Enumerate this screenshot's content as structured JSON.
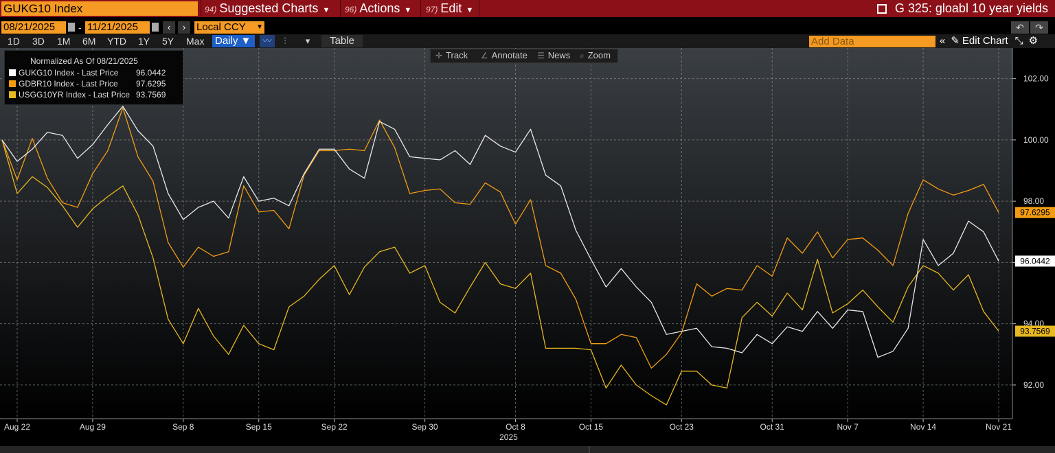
{
  "topbar": {
    "ticker": "GUKG10 Index",
    "menus": [
      {
        "num": "94)",
        "label": "Suggested Charts"
      },
      {
        "num": "96)",
        "label": "Actions"
      },
      {
        "num": "97)",
        "label": "Edit"
      }
    ],
    "title": "G 325: gloabl 10 year yields"
  },
  "controls": {
    "start_date": "08/21/2025",
    "end_date": "11/21/2025",
    "currency": "Local CCY",
    "ranges": [
      "1D",
      "3D",
      "1M",
      "6M",
      "YTD",
      "1Y",
      "5Y",
      "Max"
    ],
    "frequency": "Daily ▼",
    "table_label": "Table",
    "add_data_placeholder": "Add Data",
    "edit_chart_label": "Edit Chart"
  },
  "tools": [
    "Track",
    "Annotate",
    "News",
    "Zoom"
  ],
  "legend": {
    "title": "Normalized As Of 08/21/2025",
    "entries": [
      {
        "label": "GUKG10 Index - Last Price",
        "value": "96.0442",
        "color": "#ffffff"
      },
      {
        "label": "GDBR10 Index - Last Price",
        "value": "97.6295",
        "color": "#f39c12"
      },
      {
        "label": "USGG10YR Index - Last Price",
        "value": "93.7569",
        "color": "#e8b820"
      }
    ]
  },
  "chart_data": {
    "type": "line",
    "x": [
      "Aug 21",
      "Aug 22",
      "Aug 25",
      "Aug 26",
      "Aug 27",
      "Aug 28",
      "Aug 29",
      "Sep 1",
      "Sep 2",
      "Sep 3",
      "Sep 4",
      "Sep 5",
      "Sep 8",
      "Sep 9",
      "Sep 10",
      "Sep 11",
      "Sep 12",
      "Sep 15",
      "Sep 16",
      "Sep 17",
      "Sep 18",
      "Sep 19",
      "Sep 22",
      "Sep 23",
      "Sep 24",
      "Sep 25",
      "Sep 26",
      "Sep 29",
      "Sep 30",
      "Oct 1",
      "Oct 2",
      "Oct 3",
      "Oct 6",
      "Oct 7",
      "Oct 8",
      "Oct 9",
      "Oct 10",
      "Oct 13",
      "Oct 14",
      "Oct 15",
      "Oct 16",
      "Oct 17",
      "Oct 20",
      "Oct 21",
      "Oct 22",
      "Oct 23",
      "Oct 24",
      "Oct 27",
      "Oct 28",
      "Oct 29",
      "Oct 30",
      "Oct 31",
      "Nov 3",
      "Nov 4",
      "Nov 5",
      "Nov 6",
      "Nov 7",
      "Nov 10",
      "Nov 11",
      "Nov 12",
      "Nov 13",
      "Nov 14",
      "Nov 17",
      "Nov 18",
      "Nov 19",
      "Nov 20",
      "Nov 21"
    ],
    "series": [
      {
        "name": "GUKG10 Index - Last Price",
        "color": "#e8e8e8",
        "values": [
          100.0,
          99.3,
          99.7,
          100.25,
          100.15,
          99.4,
          99.85,
          100.5,
          101.1,
          100.3,
          99.8,
          98.25,
          97.4,
          97.8,
          98.0,
          97.45,
          98.8,
          98.0,
          98.1,
          97.85,
          98.9,
          99.7,
          99.7,
          99.05,
          98.75,
          100.6,
          100.35,
          99.45,
          99.4,
          99.35,
          99.65,
          99.2,
          100.15,
          99.8,
          99.6,
          100.35,
          98.85,
          98.5,
          97.05,
          96.1,
          95.2,
          95.8,
          95.2,
          94.7,
          93.65,
          93.75,
          93.85,
          93.25,
          93.2,
          93.05,
          93.65,
          93.35,
          93.9,
          93.75,
          94.4,
          93.85,
          94.45,
          94.4,
          92.9,
          93.1,
          93.85,
          96.75,
          95.9,
          96.3,
          97.35,
          97.0,
          96.0442
        ]
      },
      {
        "name": "GDBR10 Index - Last Price",
        "color": "#f39c12",
        "values": [
          100.0,
          98.7,
          100.05,
          98.75,
          97.95,
          97.8,
          98.9,
          99.65,
          101.05,
          99.45,
          98.65,
          96.65,
          95.85,
          96.5,
          96.2,
          96.35,
          98.5,
          97.65,
          97.7,
          97.1,
          98.85,
          99.65,
          99.65,
          99.7,
          99.65,
          100.65,
          99.75,
          98.25,
          98.35,
          98.4,
          97.95,
          97.9,
          98.6,
          98.3,
          97.25,
          98.05,
          95.9,
          95.65,
          94.8,
          93.35,
          93.35,
          93.65,
          93.55,
          92.55,
          93.0,
          93.7,
          95.3,
          94.9,
          95.15,
          95.1,
          95.9,
          95.55,
          96.8,
          96.3,
          97.0,
          96.15,
          96.75,
          96.8,
          96.4,
          95.9,
          97.6,
          98.7,
          98.4,
          98.2,
          98.35,
          98.55,
          97.6295
        ]
      },
      {
        "name": "USGG10YR Index - Last Price",
        "color": "#e8b820",
        "values": [
          100.0,
          98.25,
          98.8,
          98.45,
          97.85,
          97.15,
          97.75,
          98.15,
          98.5,
          97.55,
          96.15,
          94.15,
          93.35,
          94.5,
          93.6,
          93.0,
          93.95,
          93.35,
          93.15,
          94.55,
          94.9,
          95.45,
          95.9,
          94.95,
          95.85,
          96.35,
          96.5,
          95.65,
          95.9,
          94.7,
          94.35,
          95.2,
          96.0,
          95.3,
          95.15,
          95.65,
          93.2,
          93.2,
          93.2,
          93.15,
          91.9,
          92.65,
          92.0,
          91.65,
          91.35,
          92.45,
          92.45,
          92.0,
          91.9,
          94.2,
          94.7,
          94.25,
          95.0,
          94.45,
          96.1,
          94.35,
          94.65,
          95.1,
          94.55,
          94.05,
          95.2,
          95.9,
          95.65,
          95.1,
          95.6,
          94.4,
          93.7569
        ]
      }
    ],
    "x_tick_labels": [
      {
        "label": "Aug 22",
        "index": 1
      },
      {
        "label": "Aug 29",
        "index": 6
      },
      {
        "label": "Sep 8",
        "index": 12
      },
      {
        "label": "Sep 15",
        "index": 17
      },
      {
        "label": "Sep 22",
        "index": 22
      },
      {
        "label": "Sep 30",
        "index": 28
      },
      {
        "label": "Oct 8",
        "index": 34
      },
      {
        "label": "Oct 15",
        "index": 39
      },
      {
        "label": "Oct 23",
        "index": 45
      },
      {
        "label": "Oct 31",
        "index": 51
      },
      {
        "label": "Nov 7",
        "index": 56
      },
      {
        "label": "Nov 14",
        "index": 61
      },
      {
        "label": "Nov 21",
        "index": 66
      }
    ],
    "year_label": "2025",
    "y_ticks": [
      92.0,
      94.0,
      96.0,
      98.0,
      100.0,
      102.0
    ],
    "ylim": [
      90.9,
      103.0
    ],
    "last_value_labels": [
      "97.6295",
      "96.0442",
      "93.7569"
    ],
    "grid": true,
    "legend_position": "top-left"
  }
}
